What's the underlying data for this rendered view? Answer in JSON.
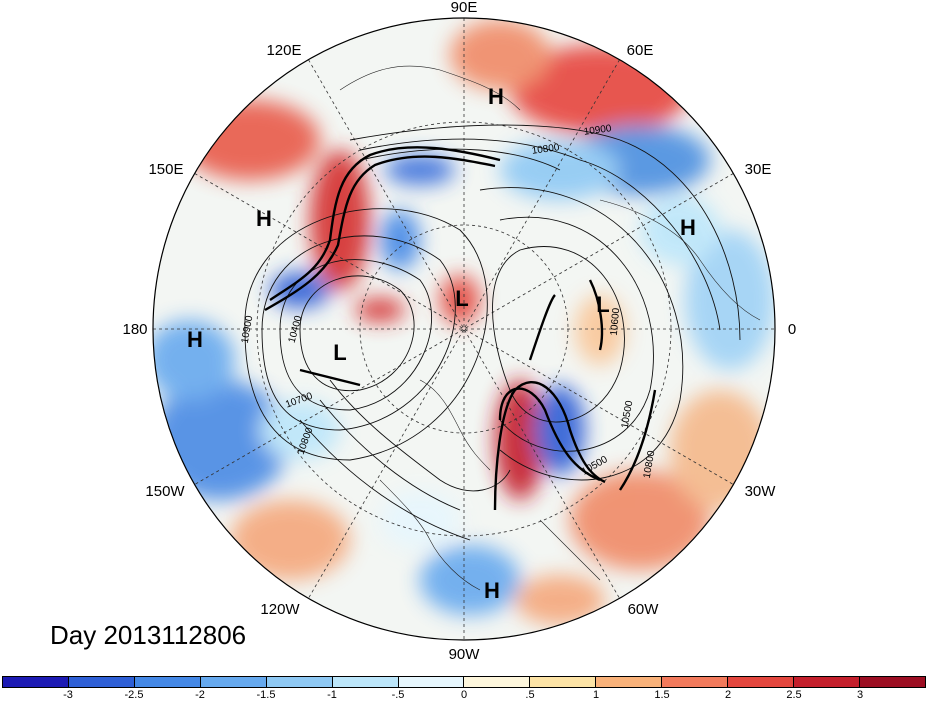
{
  "title": "Day 2013112806",
  "longitude_labels": {
    "lon_90e": "90E",
    "lon_60e": "60E",
    "lon_30e": "30E",
    "lon_0": "0",
    "lon_30w": "30W",
    "lon_60w": "60W",
    "lon_90w": "90W",
    "lon_120w": "120W",
    "lon_150w": "150W",
    "lon_180": "180",
    "lon_150e": "150E",
    "lon_120e": "120E"
  },
  "pressure_centers": [
    {
      "type": "H",
      "label": "H"
    },
    {
      "type": "H",
      "label": "H"
    },
    {
      "type": "H",
      "label": "H"
    },
    {
      "type": "H",
      "label": "H"
    },
    {
      "type": "H",
      "label": "H"
    },
    {
      "type": "L",
      "label": "L"
    },
    {
      "type": "L",
      "label": "L"
    },
    {
      "type": "L",
      "label": "L"
    }
  ],
  "contour_labels": [
    "10900",
    "10800",
    "10400",
    "10700",
    "10800",
    "10900",
    "10600",
    "10500",
    "10800",
    "10500"
  ],
  "colorbar": {
    "tick_labels": [
      "-3",
      "-2.5",
      "-2",
      "-1.5",
      "-1",
      "-.5",
      "0",
      ".5",
      "1",
      "1.5",
      "2",
      "2.5",
      "3"
    ],
    "colors": [
      "#1c1ab4",
      "#2e5fd6",
      "#4488e6",
      "#66a9ee",
      "#8fc9f4",
      "#bce6fa",
      "#e6f6fd",
      "#fdf6dc",
      "#fce3a6",
      "#f9b27a",
      "#f27a5c",
      "#e3463e",
      "#c41f2c",
      "#9c0e22"
    ]
  }
}
